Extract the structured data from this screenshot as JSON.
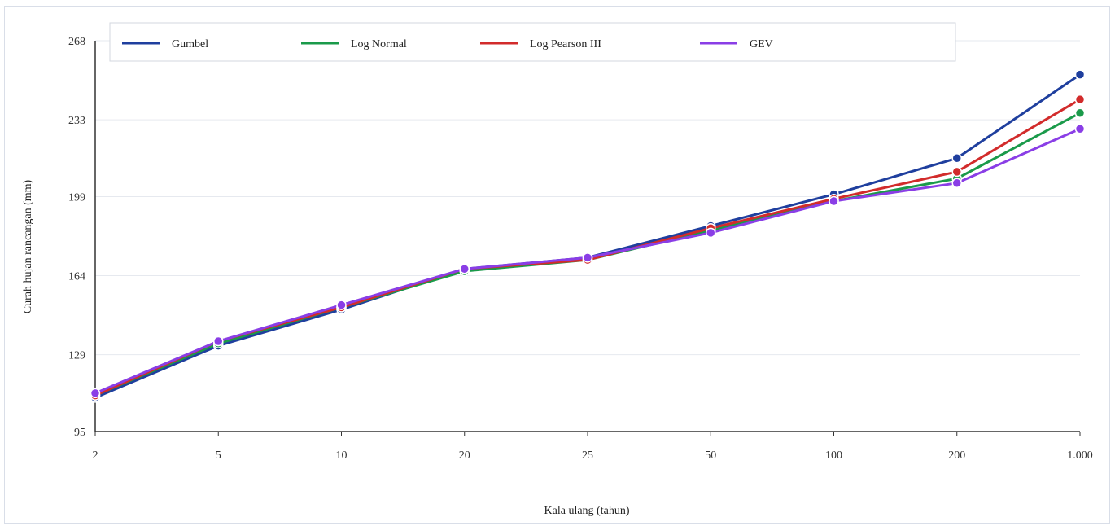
{
  "chart_data": {
    "type": "line",
    "xlabel": "Kala ulang (tahun)",
    "ylabel": "Curah hujan rancangan (mm)",
    "categories": [
      "2",
      "5",
      "10",
      "20",
      "25",
      "50",
      "100",
      "200",
      "1.000"
    ],
    "y_ticks": [
      "95",
      "129",
      "164",
      "199",
      "233",
      "268"
    ],
    "ylim": [
      95,
      268
    ],
    "grid": true,
    "legend_position": "top",
    "series": [
      {
        "name": "Gumbel",
        "color": "#1f3f9e",
        "values": [
          110,
          133,
          149,
          167,
          172,
          186,
          200,
          216,
          253
        ]
      },
      {
        "name": "Log Normal",
        "color": "#1a9a4a",
        "values": [
          111,
          134,
          150,
          166,
          171,
          184,
          197,
          207,
          236
        ]
      },
      {
        "name": "Log Pearson III",
        "color": "#d22b2b",
        "values": [
          111,
          135,
          150,
          167,
          171,
          185,
          198,
          210,
          242
        ]
      },
      {
        "name": "GEV",
        "color": "#8a3ee6",
        "values": [
          112,
          135,
          151,
          167,
          172,
          183,
          197,
          205,
          229
        ]
      }
    ]
  }
}
